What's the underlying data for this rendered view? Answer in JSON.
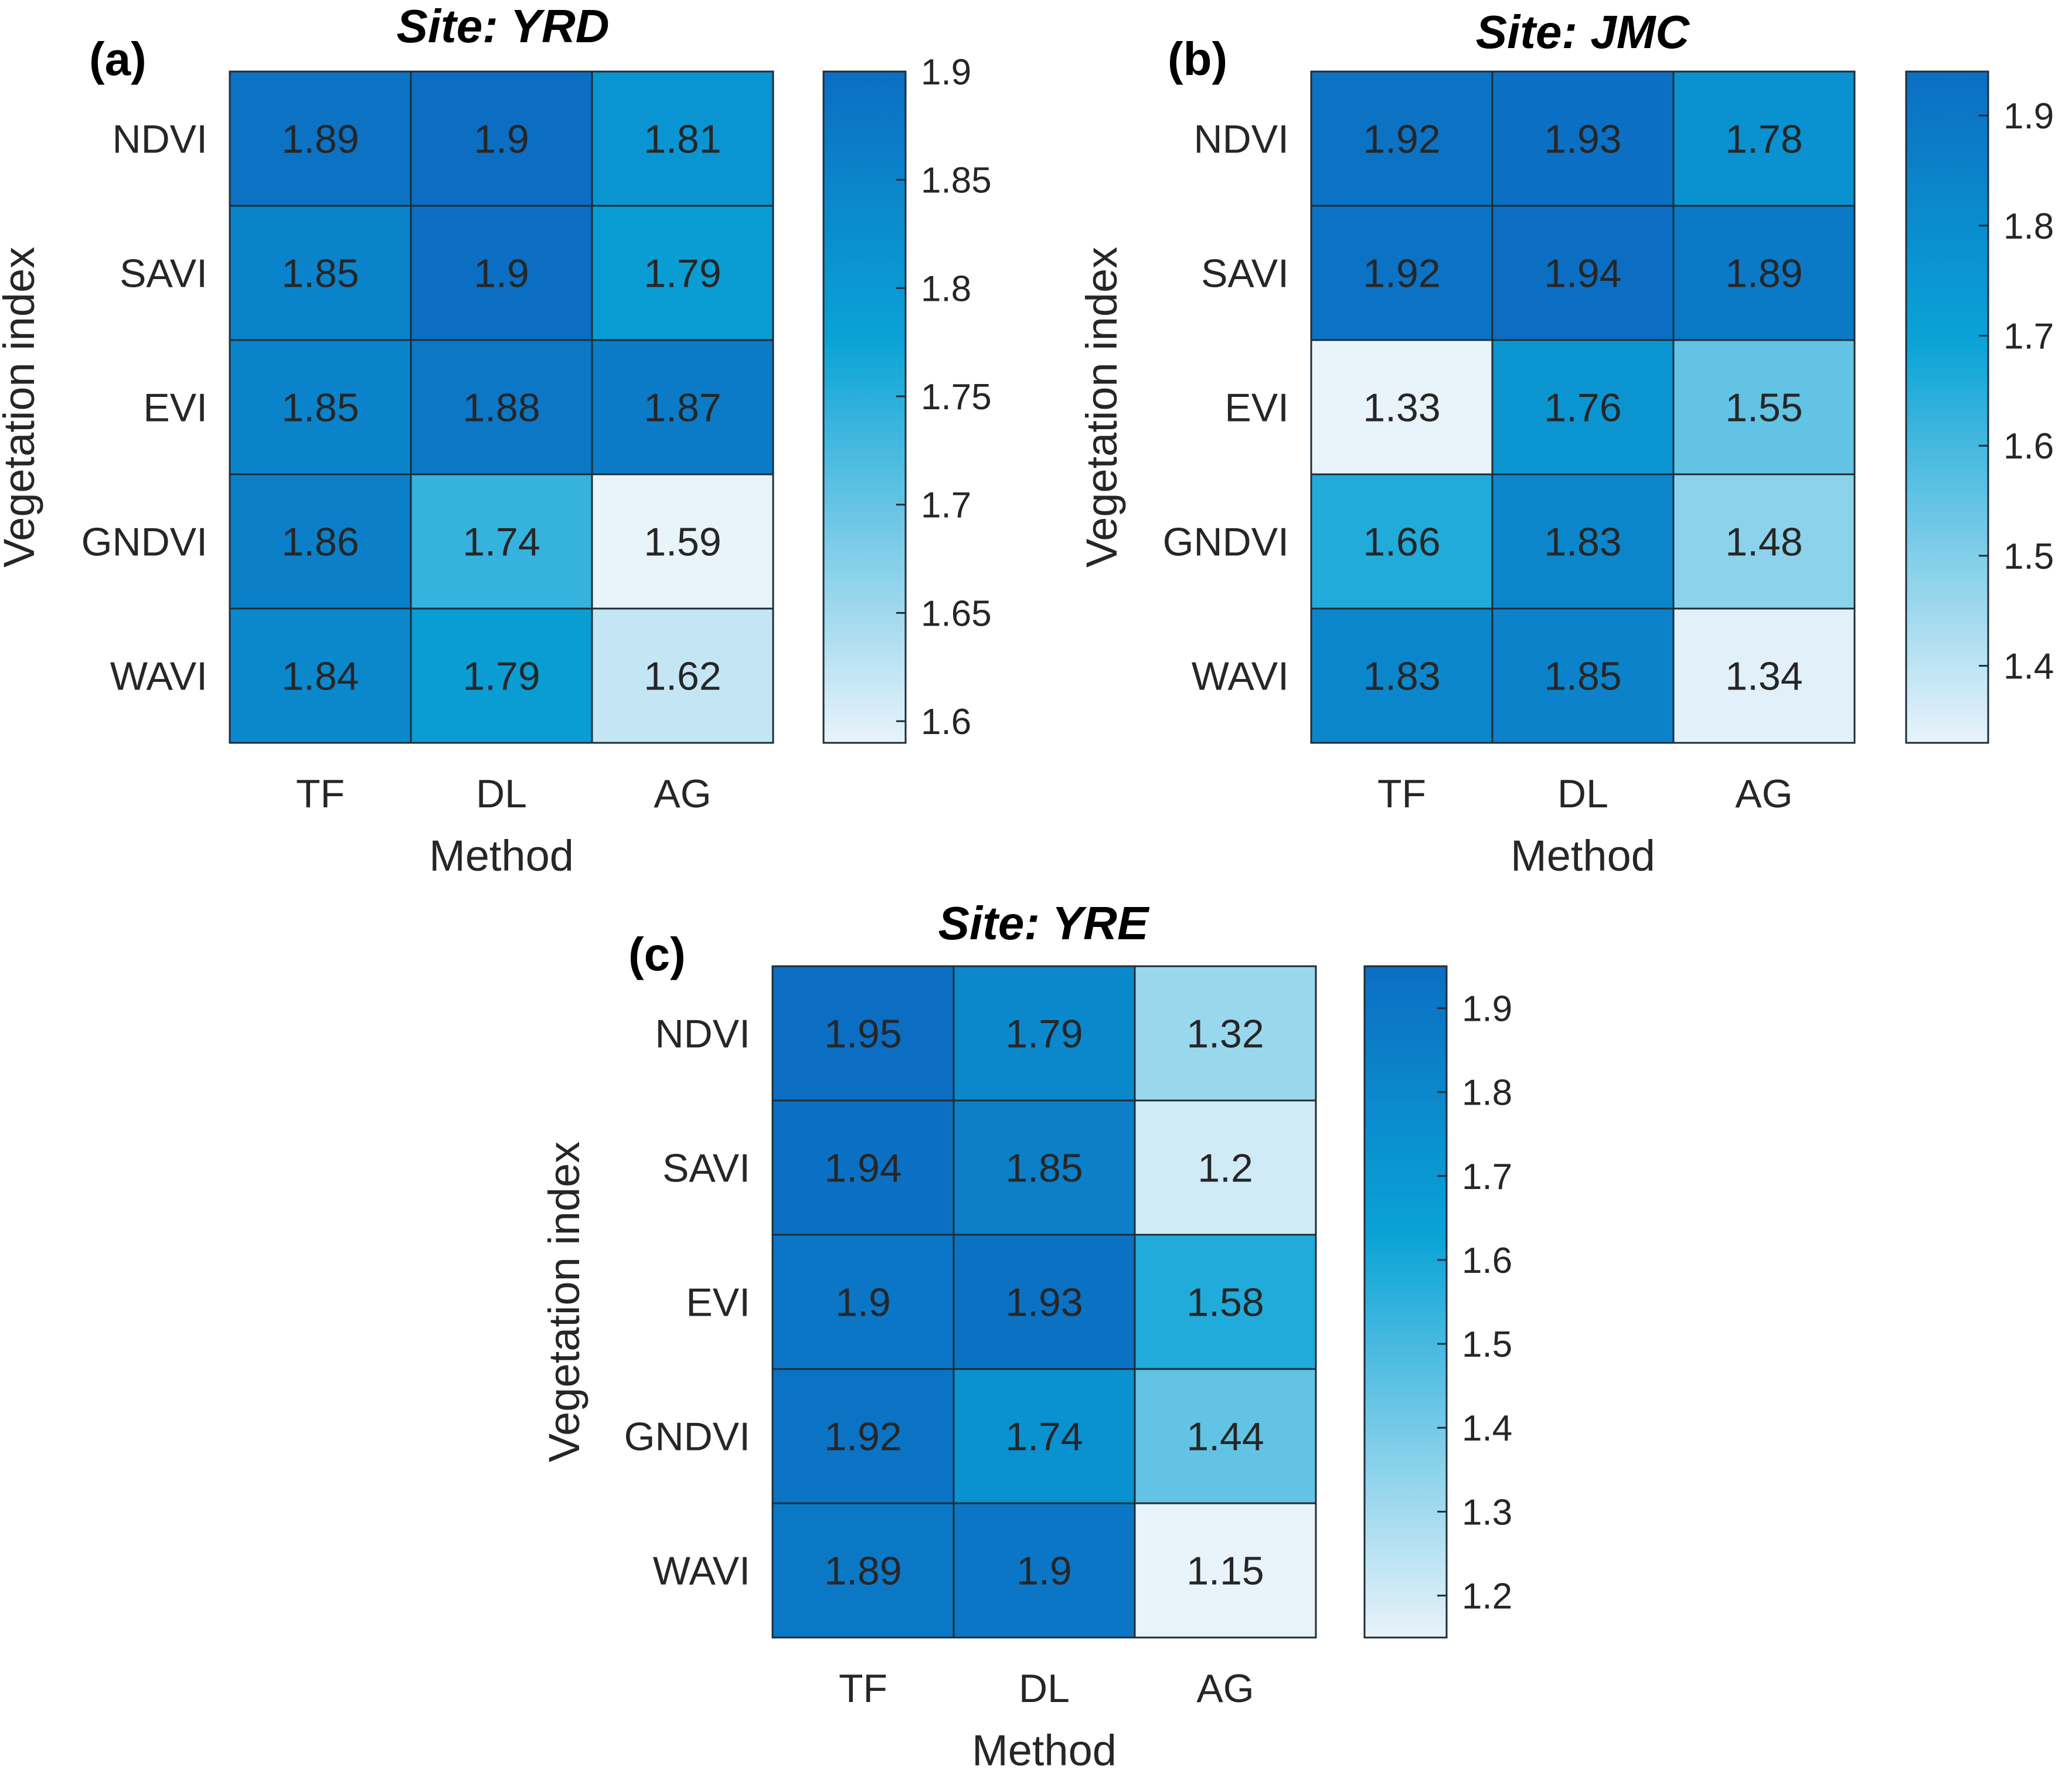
{
  "chart_data": [
    {
      "type": "heatmap",
      "panel_label": "(a)",
      "title": "Site: YRD",
      "xlabel": "Method",
      "ylabel": "Vegetation index",
      "x_categories": [
        "TF",
        "DL",
        "AG"
      ],
      "y_categories": [
        "NDVI",
        "SAVI",
        "EVI",
        "GNDVI",
        "WAVI"
      ],
      "values": [
        [
          1.89,
          1.9,
          1.81
        ],
        [
          1.85,
          1.9,
          1.79
        ],
        [
          1.85,
          1.88,
          1.87
        ],
        [
          1.86,
          1.74,
          1.59
        ],
        [
          1.84,
          1.79,
          1.62
        ]
      ],
      "colorbar": {
        "range": [
          1.59,
          1.9
        ],
        "ticks": [
          1.6,
          1.65,
          1.7,
          1.75,
          1.8,
          1.85,
          1.9
        ],
        "tick_labels": [
          "1.6",
          "1.65",
          "1.7",
          "1.75",
          "1.8",
          "1.85",
          "1.9"
        ]
      }
    },
    {
      "type": "heatmap",
      "panel_label": "(b)",
      "title": "Site: JMC",
      "xlabel": "Method",
      "ylabel": "Vegetation index",
      "x_categories": [
        "TF",
        "DL",
        "AG"
      ],
      "y_categories": [
        "NDVI",
        "SAVI",
        "EVI",
        "GNDVI",
        "WAVI"
      ],
      "values": [
        [
          1.92,
          1.93,
          1.78
        ],
        [
          1.92,
          1.94,
          1.89
        ],
        [
          1.33,
          1.76,
          1.55
        ],
        [
          1.66,
          1.83,
          1.48
        ],
        [
          1.83,
          1.85,
          1.34
        ]
      ],
      "colorbar": {
        "range": [
          1.33,
          1.94
        ],
        "ticks": [
          1.4,
          1.5,
          1.6,
          1.7,
          1.8,
          1.9
        ],
        "tick_labels": [
          "1.4",
          "1.5",
          "1.6",
          "1.7",
          "1.8",
          "1.9"
        ]
      }
    },
    {
      "type": "heatmap",
      "panel_label": "(c)",
      "title": "Site: YRE",
      "xlabel": "Method",
      "ylabel": "Vegetation index",
      "x_categories": [
        "TF",
        "DL",
        "AG"
      ],
      "y_categories": [
        "NDVI",
        "SAVI",
        "EVI",
        "GNDVI",
        "WAVI"
      ],
      "values": [
        [
          1.95,
          1.79,
          1.32
        ],
        [
          1.94,
          1.85,
          1.2
        ],
        [
          1.9,
          1.93,
          1.58
        ],
        [
          1.92,
          1.74,
          1.44
        ],
        [
          1.89,
          1.9,
          1.15
        ]
      ],
      "colorbar": {
        "range": [
          1.15,
          1.95
        ],
        "ticks": [
          1.2,
          1.3,
          1.4,
          1.5,
          1.6,
          1.7,
          1.8,
          1.9
        ],
        "tick_labels": [
          "1.2",
          "1.3",
          "1.4",
          "1.5",
          "1.6",
          "1.7",
          "1.8",
          "1.9"
        ]
      }
    }
  ],
  "colors": {
    "low": "#e8f3fa",
    "mid": "#0aa3d6",
    "high": "#0b6ec2",
    "grid": "#1f2d36",
    "text_dark": "#262626",
    "text_light": "#262626",
    "axis_text": "#262626"
  }
}
